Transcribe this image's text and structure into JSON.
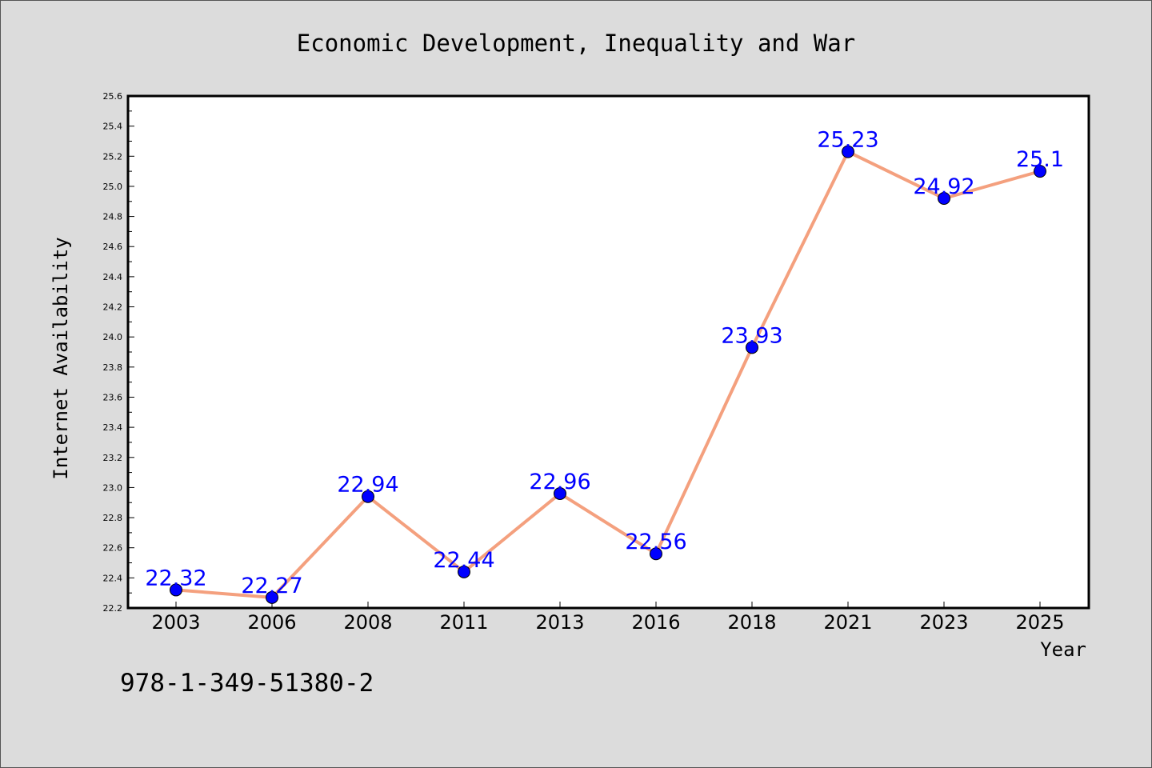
{
  "chart_data": {
    "type": "line",
    "title": "Economic Development, Inequality and War",
    "xlabel": "Year",
    "ylabel": "Internet Availability",
    "categories": [
      "2003",
      "2006",
      "2008",
      "2011",
      "2013",
      "2016",
      "2018",
      "2021",
      "2023",
      "2025"
    ],
    "values": [
      22.32,
      22.27,
      22.94,
      22.44,
      22.96,
      22.56,
      23.93,
      25.23,
      24.92,
      25.1
    ],
    "data_labels": [
      "22.32",
      "22.27",
      "22.94",
      "22.44",
      "22.96",
      "22.56",
      "23.93",
      "25.23",
      "24.92",
      "25.1"
    ],
    "ylim": [
      22.2,
      25.6
    ],
    "yticks": [
      "22.2",
      "22.4",
      "22.6",
      "22.8",
      "23.0",
      "23.2",
      "23.4",
      "23.6",
      "23.8",
      "24.0",
      "24.2",
      "24.4",
      "24.6",
      "24.8",
      "25.0",
      "25.2",
      "25.4",
      "25.6"
    ],
    "grid": false,
    "colors": {
      "line": "#f4a07e",
      "marker": "#0000ff",
      "label": "#0000ff",
      "background": "#dcdcdc",
      "plot_background": "#ffffff"
    }
  },
  "annotation": "978-1-349-51380-2"
}
